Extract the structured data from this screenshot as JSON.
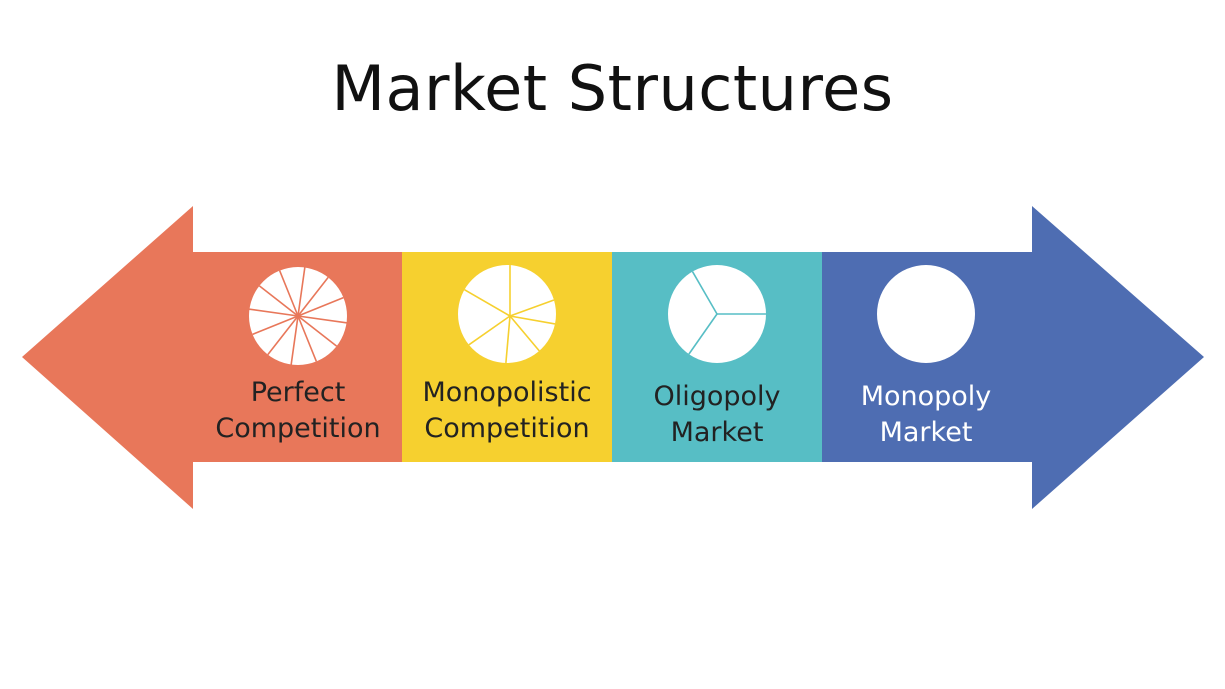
{
  "title": "Market Structures",
  "colors": {
    "perfect": "#E8775A",
    "monopolistic": "#F6D02F",
    "oligopoly": "#57BEC5",
    "monopoly": "#4E6DB2",
    "text_dark": "#222222",
    "text_light": "#ffffff"
  },
  "segments": [
    {
      "key": "perfect",
      "line1": "Perfect",
      "line2": "Competition",
      "icon": "pie-many-slices-icon",
      "slices": 12
    },
    {
      "key": "monopolistic",
      "line1": "Monopolistic",
      "line2": "Competition",
      "icon": "pie-several-slices-icon",
      "slices": 6
    },
    {
      "key": "oligopoly",
      "line1": "Oligopoly",
      "line2": "Market",
      "icon": "pie-three-slices-icon",
      "slices": 3
    },
    {
      "key": "monopoly",
      "line1": "Monopoly",
      "line2": "Market",
      "icon": "whole-circle-icon",
      "slices": 1
    }
  ]
}
